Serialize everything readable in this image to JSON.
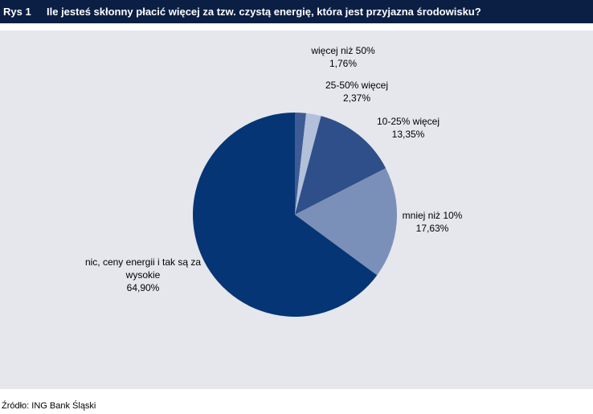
{
  "figure_label": "Rys 1",
  "source": "Źródło: ING Bank Śląski",
  "chart_data": {
    "type": "pie",
    "title": "Ile jesteś skłonny płacić więcej za tzw. czystą energię, która jest przyjazna środowisku?",
    "categories": [
      "więcej niż 50%",
      "25-50% więcej",
      "10-25% więcej",
      "mniej niż 10%",
      "nic, ceny energii i tak są za wysokie"
    ],
    "values": [
      1.76,
      2.37,
      13.35,
      17.63,
      64.9
    ],
    "value_labels": [
      "1,76%",
      "2,37%",
      "13,35%",
      "17,63%",
      "64,90%"
    ],
    "colors": [
      "#3d5c96",
      "#b3c0da",
      "#2e4f8a",
      "#7b90b8",
      "#063575"
    ]
  }
}
